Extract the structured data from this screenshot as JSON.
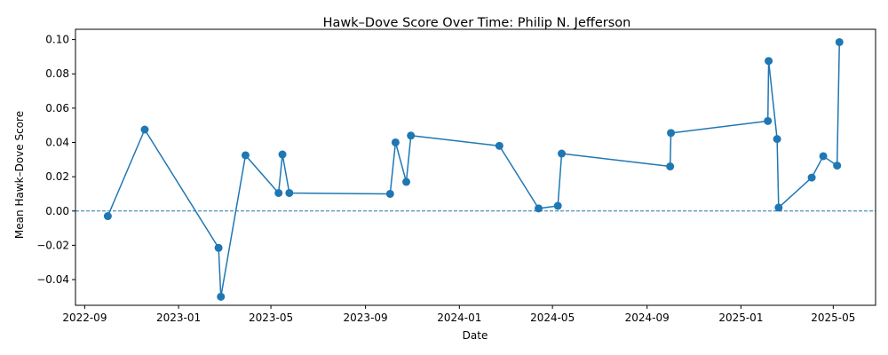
{
  "chart_data": {
    "type": "line",
    "title": "Hawk–Dove Score Over Time: Philip N. Jefferson",
    "xlabel": "Date",
    "ylabel": "Mean Hawk–Dove Score",
    "xlim": [
      "2022-08-20",
      "2025-06-25"
    ],
    "ylim": [
      -0.055,
      0.106
    ],
    "x_ticks": [
      {
        "date": "2022-09-01",
        "label": "2022-09"
      },
      {
        "date": "2023-01-01",
        "label": "2023-01"
      },
      {
        "date": "2023-05-01",
        "label": "2023-05"
      },
      {
        "date": "2023-09-01",
        "label": "2023-09"
      },
      {
        "date": "2024-01-01",
        "label": "2024-01"
      },
      {
        "date": "2024-05-01",
        "label": "2024-05"
      },
      {
        "date": "2024-09-01",
        "label": "2024-09"
      },
      {
        "date": "2025-01-01",
        "label": "2025-01"
      },
      {
        "date": "2025-05-01",
        "label": "2025-05"
      }
    ],
    "y_ticks": [
      {
        "value": -0.04,
        "label": "−0.04"
      },
      {
        "value": -0.02,
        "label": "−0.02"
      },
      {
        "value": 0.0,
        "label": "0.00"
      },
      {
        "value": 0.02,
        "label": "0.02"
      },
      {
        "value": 0.04,
        "label": "0.04"
      },
      {
        "value": 0.06,
        "label": "0.06"
      },
      {
        "value": 0.08,
        "label": "0.08"
      },
      {
        "value": 0.1,
        "label": "0.10"
      }
    ],
    "reference_line": {
      "y": 0.0,
      "style": "dashed"
    },
    "grid": false,
    "series": [
      {
        "color": "#1f77b4",
        "points": [
          {
            "x": "2022-10-01",
            "y": -0.003
          },
          {
            "x": "2022-11-18",
            "y": 0.0475
          },
          {
            "x": "2023-02-22",
            "y": -0.0215
          },
          {
            "x": "2023-02-25",
            "y": -0.05
          },
          {
            "x": "2023-03-29",
            "y": 0.0325
          },
          {
            "x": "2023-05-11",
            "y": 0.0105
          },
          {
            "x": "2023-05-16",
            "y": 0.033
          },
          {
            "x": "2023-05-25",
            "y": 0.0105
          },
          {
            "x": "2023-10-03",
            "y": 0.01
          },
          {
            "x": "2023-10-10",
            "y": 0.04
          },
          {
            "x": "2023-10-24",
            "y": 0.017
          },
          {
            "x": "2023-10-30",
            "y": 0.044
          },
          {
            "x": "2024-02-22",
            "y": 0.038
          },
          {
            "x": "2024-04-13",
            "y": 0.0015
          },
          {
            "x": "2024-05-08",
            "y": 0.003
          },
          {
            "x": "2024-05-13",
            "y": 0.0335
          },
          {
            "x": "2024-10-01",
            "y": 0.026
          },
          {
            "x": "2024-10-02",
            "y": 0.0455
          },
          {
            "x": "2025-02-05",
            "y": 0.0525
          },
          {
            "x": "2025-02-06",
            "y": 0.0875
          },
          {
            "x": "2025-02-17",
            "y": 0.042
          },
          {
            "x": "2025-02-19",
            "y": 0.002
          },
          {
            "x": "2025-04-03",
            "y": 0.0195
          },
          {
            "x": "2025-04-18",
            "y": 0.032
          },
          {
            "x": "2025-05-06",
            "y": 0.0265
          },
          {
            "x": "2025-05-09",
            "y": 0.0985
          }
        ]
      }
    ]
  }
}
